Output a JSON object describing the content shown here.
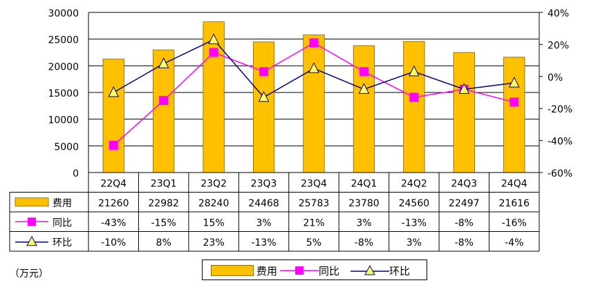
{
  "chart_data": {
    "type": "bar",
    "categories": [
      "22Q4",
      "23Q1",
      "23Q2",
      "23Q3",
      "23Q4",
      "24Q1",
      "24Q2",
      "24Q3",
      "24Q4"
    ],
    "series": [
      {
        "name": "费用",
        "type": "bar",
        "axis": "left",
        "values": [
          21260,
          22982,
          28240,
          24468,
          25783,
          23780,
          24560,
          22497,
          21616
        ],
        "labels": [
          "21260",
          "22982",
          "28240",
          "24468",
          "25783",
          "23780",
          "24560",
          "22497",
          "21616"
        ],
        "color": "#FFC000"
      },
      {
        "name": "同比",
        "type": "line",
        "axis": "right",
        "marker": "square",
        "values": [
          -43,
          -15,
          15,
          3,
          21,
          3,
          -13,
          -8,
          -16
        ],
        "labels": [
          "-43%",
          "-15%",
          "15%",
          "3%",
          "21%",
          "3%",
          "-13%",
          "-8%",
          "-16%"
        ],
        "color": "#FF00FF"
      },
      {
        "name": "环比",
        "type": "line",
        "axis": "right",
        "marker": "triangle",
        "values": [
          -10,
          8,
          23,
          -13,
          5,
          -8,
          3,
          -8,
          -4
        ],
        "labels": [
          "-10%",
          "8%",
          "23%",
          "-13%",
          "5%",
          "-8%",
          "3%",
          "-8%",
          "-4%"
        ],
        "color": "#000080",
        "marker_fill": "#FFFF66"
      }
    ],
    "y_left": {
      "range": [
        0,
        30000
      ],
      "ticks": [
        "0",
        "5000",
        "10000",
        "15000",
        "20000",
        "25000",
        "30000"
      ]
    },
    "y_right": {
      "range": [
        -60,
        40
      ],
      "ticks": [
        "-60%",
        "-40%",
        "-20%",
        "0%",
        "20%",
        "40%"
      ]
    },
    "grid": true,
    "legend_position": "bottom",
    "data_table": true,
    "unit_label": "（万元）"
  }
}
